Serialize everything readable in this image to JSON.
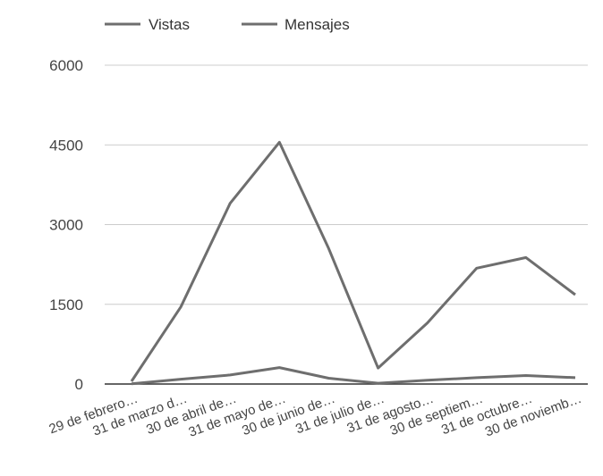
{
  "chart_data": {
    "type": "line",
    "categories": [
      "29 de febrero…",
      "31 de marzo d…",
      "30 de abril de…",
      "31 de mayo de…",
      "30 de junio de…",
      "31 de julio de…",
      "31 de agosto…",
      "30 de septiem…",
      "31 de octubre…",
      "30 de noviemb…"
    ],
    "series": [
      {
        "name": "Vistas",
        "values": [
          50,
          1450,
          3400,
          4550,
          2550,
          300,
          1150,
          2180,
          2380,
          1680
        ],
        "color": "#6e6e6e"
      },
      {
        "name": "Mensajes",
        "values": [
          5,
          90,
          170,
          310,
          110,
          15,
          70,
          120,
          160,
          120
        ],
        "color": "#6e6e6e"
      }
    ],
    "yticks": [
      0,
      1500,
      3000,
      4500,
      6000
    ],
    "ylim": [
      0,
      6000
    ],
    "grid": true,
    "legend_position": "top-left",
    "gridline_color": "#cccccc"
  }
}
